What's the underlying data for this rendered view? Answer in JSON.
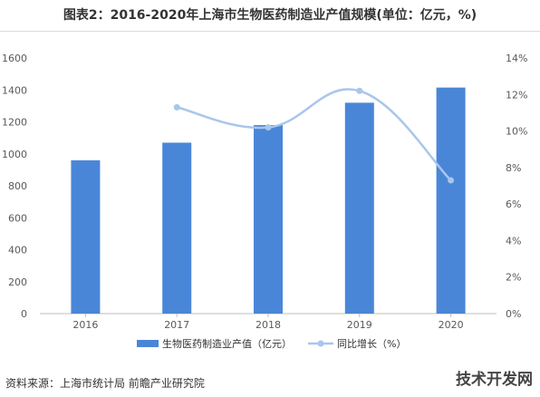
{
  "title": "图表2：2016-2020年上海市生物医药制造业产值规模(单位：亿元，%)",
  "source": "资料来源：上海市统计局 前瞻产业研究院",
  "brand": "技术开发网",
  "colors": {
    "bar": "#4a86d8",
    "line": "#a9c6ec",
    "axis": "#bfbfbf",
    "grid": "#e6e6e6",
    "text": "#595959"
  },
  "chart_data": {
    "type": "bar",
    "categories": [
      "2016",
      "2017",
      "2018",
      "2019",
      "2020"
    ],
    "series": [
      {
        "name": "生物医药制造业产值（亿元）",
        "type": "bar",
        "axis": "left",
        "values": [
          960,
          1070,
          1180,
          1320,
          1415
        ]
      },
      {
        "name": "同比增长（%）",
        "type": "line",
        "axis": "right",
        "values": [
          null,
          11.3,
          10.2,
          12.2,
          7.3
        ]
      }
    ],
    "y_left": {
      "min": 0,
      "max": 1600,
      "ticks": [
        "0",
        "200",
        "400",
        "600",
        "800",
        "1000",
        "1200",
        "1400",
        "1600"
      ]
    },
    "y_right": {
      "min": 0,
      "max": 14,
      "ticks": [
        "0%",
        "2%",
        "4%",
        "6%",
        "8%",
        "10%",
        "12%",
        "14%"
      ]
    },
    "grid": false,
    "legend": "bottom"
  }
}
